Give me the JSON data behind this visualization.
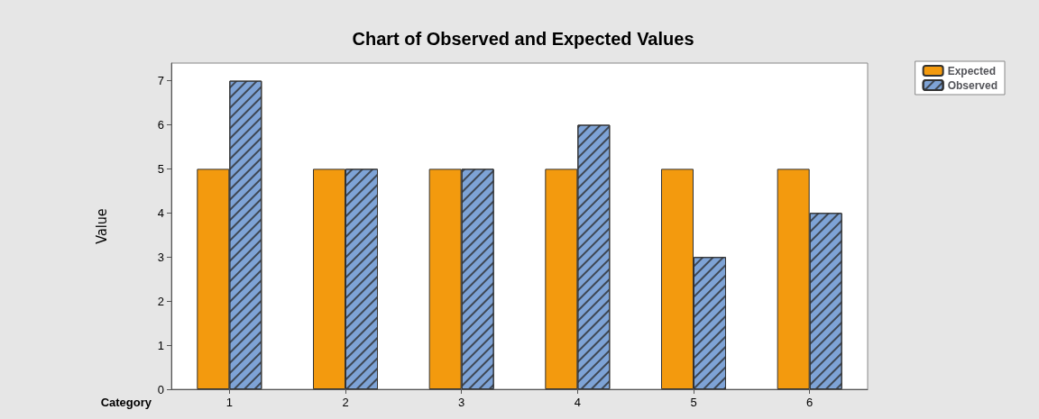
{
  "chart_data": {
    "type": "bar",
    "title": "Chart of Observed and Expected Values",
    "xlabel": "Category",
    "ylabel": "Value",
    "categories": [
      "1",
      "2",
      "3",
      "4",
      "5",
      "6"
    ],
    "series": [
      {
        "name": "Expected",
        "color": "#f39a0e",
        "values": [
          5,
          5,
          5,
          5,
          5,
          5
        ]
      },
      {
        "name": "Observed",
        "color": "#7ea3d6",
        "values": [
          7,
          5,
          5,
          6,
          3,
          4
        ]
      }
    ],
    "ylim": [
      0,
      7.4
    ],
    "yticks": [
      0,
      1,
      2,
      3,
      4,
      5,
      6,
      7
    ],
    "grid": false,
    "legend": "top right"
  }
}
